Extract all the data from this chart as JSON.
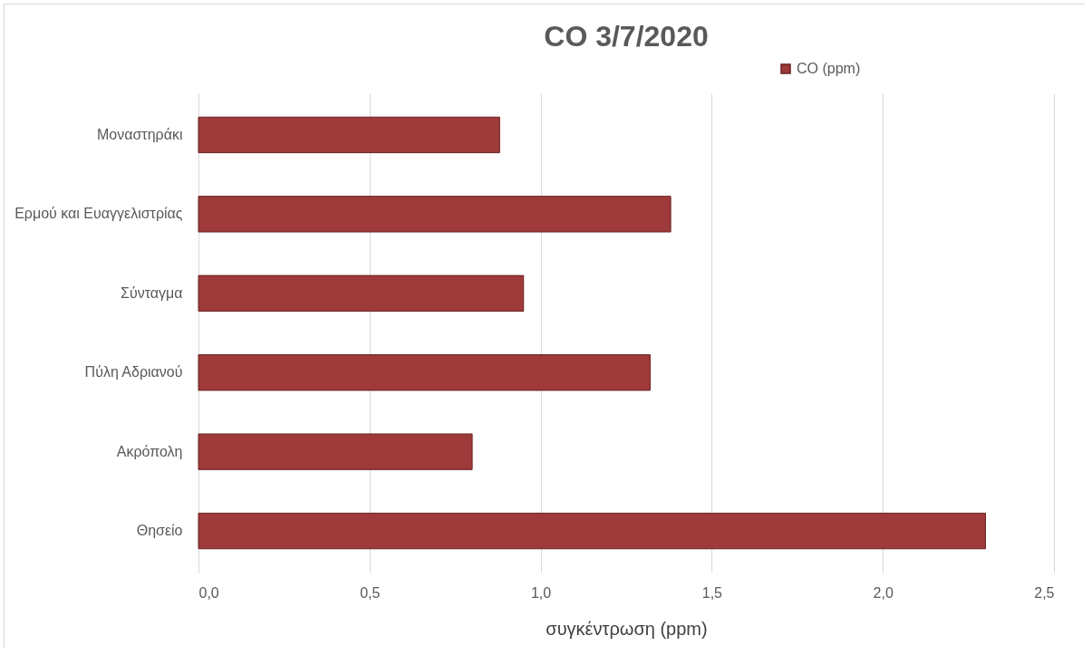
{
  "chart_data": {
    "type": "bar",
    "orientation": "horizontal",
    "title": "CO  3/7/2020",
    "xlabel": "συγκέντρωση (ppm)",
    "categories": [
      "Μοναστηράκι",
      "Ερμού και Ευαγγελιστρίας",
      "Σύνταγμα",
      "Πύλη Αδριανού",
      "Ακρόπολη",
      "Θησείο"
    ],
    "series": [
      {
        "name": "CO (ppm)",
        "color": "#9e3a3a",
        "values": [
          0.88,
          1.38,
          0.95,
          1.32,
          0.8,
          2.3
        ]
      }
    ],
    "xlim": [
      0,
      2.5
    ],
    "xticks": [
      {
        "value": 0,
        "label": "0,0"
      },
      {
        "value": 0.5,
        "label": "0,5"
      },
      {
        "value": 1,
        "label": "1,0"
      },
      {
        "value": 1.5,
        "label": "1,5"
      },
      {
        "value": 2,
        "label": "2,0"
      },
      {
        "value": 2.5,
        "label": "2,5"
      }
    ],
    "grid": "x",
    "legend": "top right"
  }
}
